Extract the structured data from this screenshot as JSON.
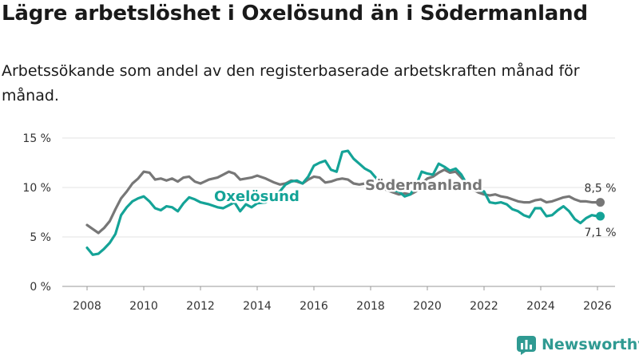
{
  "header": {
    "title": "Lägre arbetslöshet i Oxelösund än i Södermanland",
    "subtitle": "Arbetssökande som andel av den registerbaserade arbetskraften månad för månad."
  },
  "colors": {
    "oxelosund": "#14a397",
    "sodermanland": "#777777"
  },
  "brand": {
    "name": "Newsworthy"
  },
  "chart_data": {
    "type": "line",
    "title": "Lägre arbetslöshet i Oxelösund än i Södermanland",
    "xlabel": "",
    "ylabel": "",
    "xlim": [
      2007,
      2026.7
    ],
    "ylim": [
      0,
      15
    ],
    "y_ticks": [
      0,
      5,
      10,
      15
    ],
    "y_tick_labels": [
      "0 %",
      "5 %",
      "10 %",
      "15 %"
    ],
    "x_ticks": [
      2008,
      2010,
      2012,
      2014,
      2016,
      2018,
      2020,
      2022,
      2024,
      2026
    ],
    "x_tick_labels": [
      "2008",
      "2010",
      "2012",
      "2014",
      "2016",
      "2018",
      "2020",
      "2022",
      "2024",
      "2026"
    ],
    "series": [
      {
        "name": "Oxelösund",
        "label": "Oxelösund",
        "color": "#14a397",
        "last_label": "7,1 %",
        "last_value": 7.1,
        "x": [
          2008.0,
          2008.2,
          2008.4,
          2008.6,
          2008.8,
          2009.0,
          2009.2,
          2009.4,
          2009.6,
          2009.8,
          2010.0,
          2010.2,
          2010.4,
          2010.6,
          2010.8,
          2011.0,
          2011.2,
          2011.4,
          2011.6,
          2011.8,
          2012.0,
          2012.3,
          2012.6,
          2012.8,
          2013.0,
          2013.2,
          2013.4,
          2013.6,
          2013.8,
          2014.0,
          2014.3,
          2014.6,
          2014.8,
          2015.0,
          2015.2,
          2015.4,
          2015.6,
          2015.8,
          2016.0,
          2016.2,
          2016.4,
          2016.6,
          2016.8,
          2017.0,
          2017.2,
          2017.4,
          2017.6,
          2017.8,
          2018.0,
          2018.3,
          2018.6,
          2019.0,
          2019.2,
          2019.4,
          2019.6,
          2019.8,
          2020.0,
          2020.2,
          2020.4,
          2020.6,
          2020.8,
          2021.0,
          2021.2,
          2021.4,
          2021.6,
          2021.8,
          2022.0,
          2022.2,
          2022.4,
          2022.6,
          2022.8,
          2023.0,
          2023.2,
          2023.4,
          2023.6,
          2023.8,
          2024.0,
          2024.2,
          2024.4,
          2024.6,
          2024.8,
          2025.0,
          2025.2,
          2025.4,
          2025.6,
          2025.8,
          2026.0,
          2026.1
        ],
        "values": [
          3.9,
          3.2,
          3.3,
          3.8,
          4.4,
          5.3,
          7.2,
          8.0,
          8.6,
          8.9,
          9.1,
          8.6,
          7.9,
          7.7,
          8.1,
          8.0,
          7.6,
          8.4,
          9.0,
          8.8,
          8.5,
          8.3,
          8.0,
          7.9,
          8.2,
          8.5,
          7.6,
          8.3,
          8.0,
          8.4,
          8.5,
          9.2,
          9.6,
          10.3,
          10.6,
          10.7,
          10.4,
          11.1,
          12.2,
          12.5,
          12.7,
          11.8,
          11.6,
          13.6,
          13.7,
          12.9,
          12.4,
          11.9,
          11.6,
          10.6,
          9.8,
          9.6,
          9.1,
          9.3,
          10.2,
          11.6,
          11.4,
          11.3,
          12.4,
          12.1,
          11.7,
          11.9,
          11.3,
          10.3,
          10.0,
          9.7,
          9.6,
          8.5,
          8.4,
          8.5,
          8.3,
          7.8,
          7.6,
          7.2,
          7.0,
          7.9,
          7.9,
          7.1,
          7.2,
          7.7,
          8.1,
          7.6,
          6.8,
          6.4,
          6.9,
          7.2,
          7.1,
          7.1
        ]
      },
      {
        "name": "Södermanland",
        "label": "Södermanland",
        "color": "#777777",
        "last_label": "8,5 %",
        "last_value": 8.5,
        "x": [
          2008.0,
          2008.2,
          2008.4,
          2008.6,
          2008.8,
          2009.0,
          2009.2,
          2009.4,
          2009.6,
          2009.8,
          2010.0,
          2010.2,
          2010.4,
          2010.6,
          2010.8,
          2011.0,
          2011.2,
          2011.4,
          2011.6,
          2011.8,
          2012.0,
          2012.3,
          2012.6,
          2012.8,
          2013.0,
          2013.2,
          2013.4,
          2013.6,
          2013.8,
          2014.0,
          2014.3,
          2014.6,
          2014.8,
          2015.0,
          2015.2,
          2015.4,
          2015.6,
          2015.8,
          2016.0,
          2016.2,
          2016.4,
          2016.6,
          2016.8,
          2017.0,
          2017.2,
          2017.4,
          2017.6,
          2017.8,
          2018.0,
          2018.3,
          2018.6,
          2019.0,
          2019.2,
          2019.4,
          2019.6,
          2019.8,
          2020.0,
          2020.2,
          2020.4,
          2020.6,
          2020.8,
          2021.0,
          2021.2,
          2021.4,
          2021.6,
          2021.8,
          2022.0,
          2022.2,
          2022.4,
          2022.6,
          2022.8,
          2023.0,
          2023.2,
          2023.4,
          2023.6,
          2023.8,
          2024.0,
          2024.2,
          2024.4,
          2024.6,
          2024.8,
          2025.0,
          2025.2,
          2025.4,
          2025.6,
          2025.8,
          2026.0,
          2026.1
        ],
        "values": [
          6.2,
          5.8,
          5.4,
          5.9,
          6.6,
          7.8,
          8.9,
          9.6,
          10.4,
          10.9,
          11.6,
          11.5,
          10.8,
          10.9,
          10.7,
          10.9,
          10.6,
          11.0,
          11.1,
          10.6,
          10.4,
          10.8,
          11.0,
          11.3,
          11.6,
          11.4,
          10.8,
          10.9,
          11.0,
          11.2,
          10.9,
          10.5,
          10.3,
          10.4,
          10.7,
          10.6,
          10.4,
          10.8,
          11.1,
          11.0,
          10.5,
          10.6,
          10.8,
          10.9,
          10.8,
          10.4,
          10.3,
          10.4,
          10.5,
          10.1,
          9.7,
          9.3,
          9.4,
          9.3,
          9.6,
          10.4,
          10.9,
          11.1,
          11.5,
          11.8,
          11.5,
          11.6,
          11.0,
          10.4,
          9.8,
          9.5,
          9.3,
          9.2,
          9.3,
          9.1,
          9.0,
          8.8,
          8.6,
          8.5,
          8.5,
          8.7,
          8.8,
          8.5,
          8.6,
          8.8,
          9.0,
          9.1,
          8.8,
          8.6,
          8.6,
          8.5,
          8.5,
          8.5
        ]
      }
    ]
  }
}
